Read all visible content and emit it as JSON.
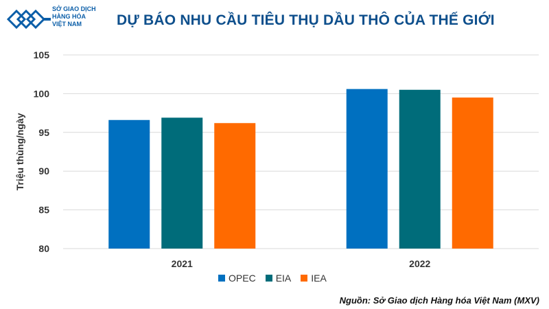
{
  "logo": {
    "line1": "SỞ GIAO DỊCH",
    "line2": "HÀNG HÓA",
    "line3": "VIỆT NAM"
  },
  "source": "Nguồn: Sở Giao dịch Hàng hóa Việt Nam (MXV)",
  "colors": {
    "title": "#0e4f8c",
    "axis_text": "#333333",
    "grid": "#d9d9d9"
  },
  "chart_data": {
    "type": "bar",
    "title": "DỰ BÁO NHU CẦU TIÊU THỤ DẦU THÔ CỦA THẾ GIỚI",
    "xlabel": "",
    "ylabel": "Triệu thùng/ngày",
    "categories": [
      "2021",
      "2022"
    ],
    "ylim": [
      80,
      105
    ],
    "yticks": [
      80,
      85,
      90,
      95,
      100,
      105
    ],
    "grid": true,
    "legend_position": "bottom",
    "series": [
      {
        "name": "OPEC",
        "color": "#0070c0",
        "values": [
          96.6,
          100.6
        ]
      },
      {
        "name": "EIA",
        "color": "#006c7a",
        "values": [
          96.9,
          100.5
        ]
      },
      {
        "name": "IEA",
        "color": "#ff6a00",
        "values": [
          96.2,
          99.5
        ]
      }
    ]
  }
}
